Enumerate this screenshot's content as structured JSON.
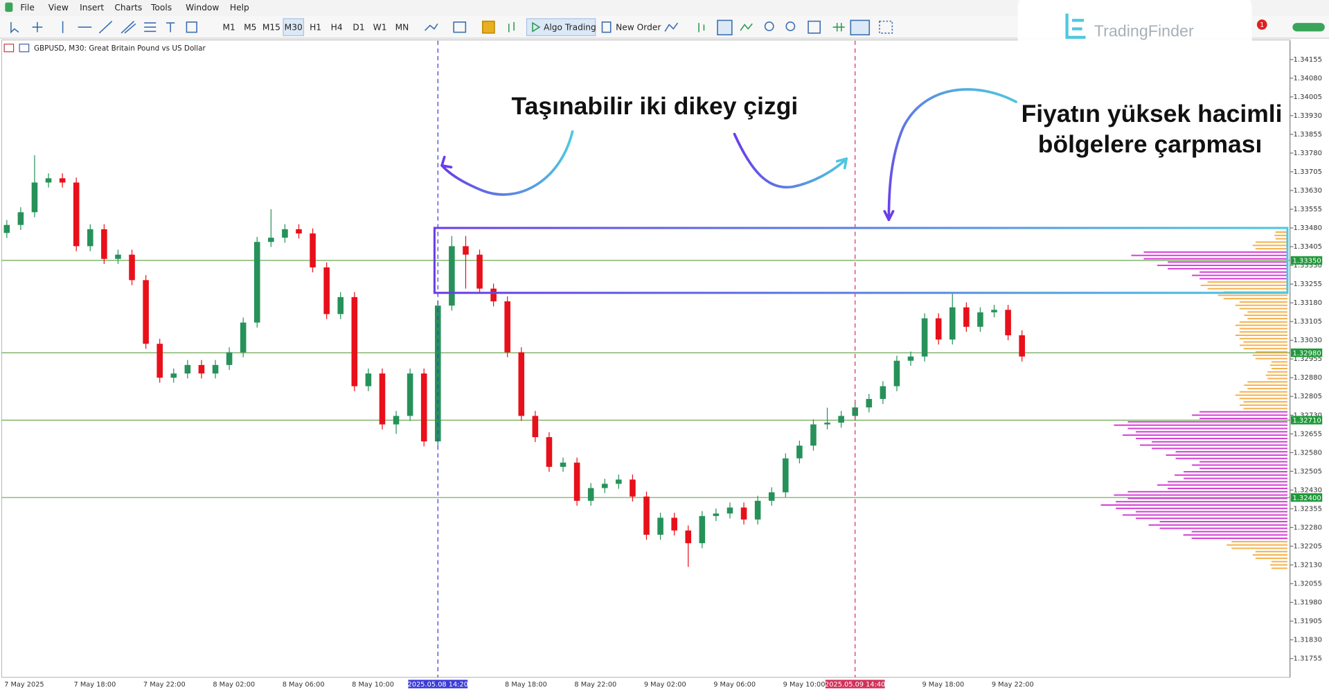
{
  "ui": {
    "menu": [
      "File",
      "View",
      "Insert",
      "Charts",
      "Tools",
      "Window",
      "Help"
    ],
    "timeframes": [
      "M1",
      "M5",
      "M15",
      "M30",
      "H1",
      "H4",
      "D1",
      "W1",
      "MN"
    ],
    "active_timeframe": "M30",
    "buttons": [
      "Algo Trading",
      "New Order"
    ],
    "logo": "TradingFinder",
    "notifications": 1
  },
  "chart_data": {
    "type": "candlestick",
    "title": "GBPUSD, M30: Great Britain Pound vs US Dollar",
    "categories": [
      "7 May 2025",
      null,
      null,
      null,
      null,
      "7 May 18:00",
      null,
      null,
      null,
      null,
      "7 May 22:00",
      null,
      null,
      null,
      null,
      "8 May 02:00",
      null,
      null,
      null,
      null,
      "8 May 06:00",
      null,
      null,
      null,
      null,
      "8 May 10:00",
      null,
      null,
      null,
      null,
      null,
      "2025.05.08 14:20",
      null,
      null,
      null,
      null,
      "8 May 18:00",
      null,
      null,
      null,
      null,
      "8 May 22:00",
      null,
      null,
      null,
      null,
      "9 May 02:00",
      null,
      null,
      null,
      null,
      "9 May 06:00",
      null,
      null,
      null,
      null,
      "9 May 10:00",
      null,
      null,
      null,
      null,
      "2025.05.09 14:40",
      null,
      null,
      null,
      null,
      "9 May 18:00",
      null,
      null,
      null,
      null,
      "9 May 22:00",
      null,
      null
    ],
    "open": [
      1.3346,
      1.33492,
      1.33543,
      1.33662,
      1.33679,
      1.33662,
      1.33407,
      1.33475,
      1.33356,
      1.33373,
      1.33271,
      1.33016,
      1.3288,
      1.32897,
      1.32931,
      1.32897,
      1.32931,
      1.32982,
      1.33101,
      1.33424,
      1.33441,
      1.33475,
      1.33458,
      1.33322,
      1.33135,
      1.33203,
      1.32846,
      1.32897,
      1.32693,
      1.32727,
      1.32897,
      1.32625,
      1.33169,
      1.33407,
      1.33373,
      1.33237,
      1.33186,
      1.32982,
      1.32727,
      1.32642,
      1.32523,
      1.3254,
      1.32387,
      1.32438,
      1.32455,
      1.32472,
      1.32404,
      1.32251,
      1.32319,
      1.32268,
      1.32217,
      1.32326,
      1.32336,
      1.3236,
      1.32312,
      1.32387,
      1.32421,
      1.32557,
      1.32608,
      1.32693,
      1.327,
      1.32727,
      1.32761,
      1.32795,
      1.32846,
      1.32948,
      1.32965,
      1.33118,
      1.33033,
      1.33162,
      1.33084,
      1.33142,
      1.33152,
      1.3305
    ],
    "high": [
      1.33512,
      1.33563,
      1.33771,
      1.33699,
      1.33699,
      1.33682,
      1.33495,
      1.33495,
      1.33393,
      1.33393,
      1.33291,
      1.33036,
      1.32917,
      1.32951,
      1.32951,
      1.32951,
      1.33002,
      1.33121,
      1.33444,
      1.33555,
      1.33495,
      1.33495,
      1.33478,
      1.33342,
      1.33223,
      1.33223,
      1.32917,
      1.32917,
      1.32747,
      1.32917,
      1.32917,
      1.33189,
      1.33448,
      1.33448,
      1.33393,
      1.33257,
      1.33206,
      1.33002,
      1.32747,
      1.32662,
      1.3256,
      1.3256,
      1.32458,
      1.32475,
      1.32492,
      1.32492,
      1.32424,
      1.32339,
      1.32339,
      1.32288,
      1.32346,
      1.32356,
      1.3238,
      1.3238,
      1.32407,
      1.32441,
      1.32577,
      1.32628,
      1.32713,
      1.3276,
      1.32747,
      1.32781,
      1.32815,
      1.32866,
      1.32968,
      1.32985,
      1.33138,
      1.33138,
      1.3322,
      1.33182,
      1.33162,
      1.33172,
      1.33172,
      1.3307
    ],
    "low": [
      1.3344,
      1.33472,
      1.33523,
      1.33642,
      1.33642,
      1.33387,
      1.33387,
      1.33336,
      1.33336,
      1.33251,
      1.32996,
      1.3286,
      1.3286,
      1.32877,
      1.32877,
      1.32877,
      1.32911,
      1.32962,
      1.33081,
      1.33404,
      1.33421,
      1.33438,
      1.33302,
      1.33115,
      1.33115,
      1.32826,
      1.32826,
      1.32673,
      1.32655,
      1.32707,
      1.32605,
      1.32605,
      1.33149,
      1.33237,
      1.33217,
      1.33166,
      1.32962,
      1.32707,
      1.32622,
      1.32503,
      1.32503,
      1.32367,
      1.32367,
      1.32418,
      1.32435,
      1.32384,
      1.32231,
      1.32231,
      1.32248,
      1.32122,
      1.32197,
      1.32306,
      1.32316,
      1.32292,
      1.32292,
      1.32367,
      1.32401,
      1.32537,
      1.32588,
      1.32673,
      1.3268,
      1.32707,
      1.32741,
      1.32775,
      1.32826,
      1.32928,
      1.32945,
      1.33013,
      1.33013,
      1.33064,
      1.33064,
      1.33122,
      1.3303,
      1.32945
    ],
    "close": [
      1.33492,
      1.33543,
      1.33662,
      1.33679,
      1.33662,
      1.33407,
      1.33475,
      1.33356,
      1.33373,
      1.33271,
      1.33016,
      1.3288,
      1.32897,
      1.32931,
      1.32897,
      1.32931,
      1.32982,
      1.33101,
      1.33424,
      1.33441,
      1.33475,
      1.33458,
      1.33322,
      1.33135,
      1.33203,
      1.32846,
      1.32897,
      1.32693,
      1.32727,
      1.32897,
      1.32625,
      1.33169,
      1.33407,
      1.33373,
      1.33237,
      1.33186,
      1.32982,
      1.32727,
      1.32642,
      1.32523,
      1.3254,
      1.32387,
      1.32438,
      1.32455,
      1.32472,
      1.32404,
      1.32251,
      1.32319,
      1.32268,
      1.32217,
      1.32326,
      1.32336,
      1.3236,
      1.32312,
      1.32387,
      1.32421,
      1.32557,
      1.32608,
      1.32693,
      1.327,
      1.32727,
      1.32761,
      1.32795,
      1.32846,
      1.32948,
      1.32965,
      1.33118,
      1.33033,
      1.33162,
      1.33084,
      1.33142,
      1.33152,
      1.3305,
      1.32965
    ],
    "up_color": "#26925a",
    "down_color": "#e8101a",
    "ylim": [
      1.3168,
      1.3423
    ],
    "yticks": [
      1.34155,
      {
        "value": 1.3408,
        "label": "1.34080"
      },
      1.34005,
      {
        "value": 1.3393,
        "label": "1.33930"
      },
      1.33855,
      {
        "value": 1.3378,
        "label": "1.33780"
      },
      1.33705,
      {
        "value": 1.3363,
        "label": "1.33630"
      },
      1.33555,
      {
        "value": 1.3348,
        "label": "1.33480"
      },
      1.33405,
      {
        "value": 1.3333,
        "label": "1.33330"
      },
      1.33255,
      {
        "value": 1.3318,
        "label": "1.33180"
      },
      1.33105,
      {
        "value": 1.3303,
        "label": "1.33030"
      },
      1.32955,
      {
        "value": 1.3288,
        "label": "1.32880"
      },
      1.32805,
      {
        "value": 1.3273,
        "label": "1.32730"
      },
      1.32655,
      {
        "value": 1.3258,
        "label": "1.32580"
      },
      1.32505,
      {
        "value": 1.3243,
        "label": "1.32430"
      },
      1.32355,
      {
        "value": 1.3228,
        "label": "1.32280"
      },
      1.32205,
      {
        "value": 1.3213,
        "label": "1.32130"
      },
      1.32055,
      {
        "value": 1.3198,
        "label": "1.31980"
      },
      1.31905,
      {
        "value": 1.3183,
        "label": "1.31830"
      },
      1.31755
    ],
    "levels": [
      {
        "value": 1.3335,
        "label": "1.33350"
      },
      {
        "value": 1.3298,
        "label": "1.32980"
      },
      {
        "value": 1.3271,
        "label": "1.32710"
      },
      {
        "value": 1.324,
        "label": "1.32400"
      }
    ],
    "level_color": "#6aa84f",
    "vertical_lines": [
      {
        "at": "2025.05.08 14:20",
        "color": "#3b3bd6"
      },
      {
        "at": "2025.05.09 14:40",
        "color": "#d0325a"
      }
    ],
    "zone": {
      "top": 1.3348,
      "bottom": 1.3322
    },
    "volume_profile": {
      "bins": [
        1.3213,
        1.3217,
        1.3221,
        1.3225,
        1.3229,
        1.3233,
        1.3237,
        1.3241,
        1.3245,
        1.3249,
        1.3253,
        1.3257,
        1.3261,
        1.3265,
        1.3269,
        1.3273,
        1.3277,
        1.3281,
        1.3285,
        1.3289,
        1.3293,
        1.3297,
        1.3301,
        1.3305,
        1.3309,
        1.3313,
        1.3317,
        1.3321,
        1.3325,
        1.3329,
        1.3333,
        1.3337,
        1.3341,
        1.3345
      ],
      "values": [
        20,
        40,
        70,
        120,
        160,
        190,
        215,
        200,
        150,
        130,
        110,
        140,
        170,
        190,
        200,
        110,
        55,
        60,
        50,
        25,
        20,
        40,
        55,
        60,
        60,
        50,
        60,
        80,
        100,
        110,
        150,
        180,
        40,
        15
      ],
      "colors": [
        "#f5b04a",
        "#f5b04a",
        "#f5b04a",
        "#d63ad6",
        "#d63ad6",
        "#d63ad6",
        "#d63ad6",
        "#d63ad6",
        "#d63ad6",
        "#d63ad6",
        "#d63ad6",
        "#d63ad6",
        "#d63ad6",
        "#d63ad6",
        "#d63ad6",
        "#d63ad6",
        "#f5b04a",
        "#f5b04a",
        "#f5b04a",
        "#f5b04a",
        "#f5b04a",
        "#f5b04a",
        "#f5b04a",
        "#f5b04a",
        "#f5b04a",
        "#f5b04a",
        "#f5b04a",
        "#f5b04a",
        "#f5b04a",
        "#d63ad6",
        "#d63ad6",
        "#d63ad6",
        "#f5b04a",
        "#f5b04a"
      ]
    },
    "annotations": [
      {
        "lines": [
          "Taşınabilir iki dikey çizgi"
        ]
      },
      {
        "lines": [
          "Fiyatın yüksek hacimli",
          "bölgelere çarpması"
        ]
      }
    ]
  }
}
